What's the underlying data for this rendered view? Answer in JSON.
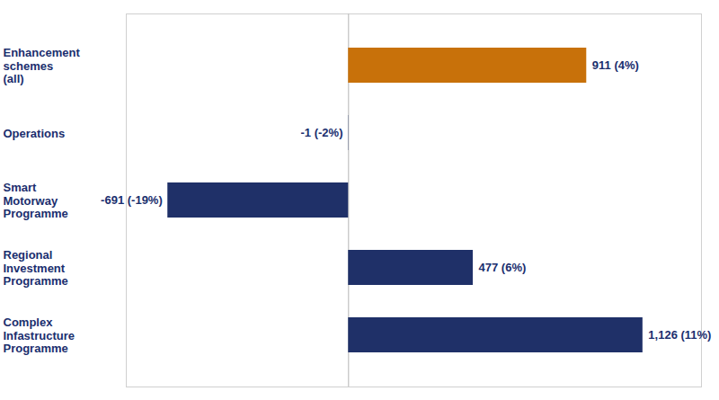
{
  "chart_data": {
    "type": "bar",
    "orientation": "horizontal",
    "categories": [
      "Enhancement\nschemes\n(all)",
      "Operations",
      "Smart\nMotorway\nProgramme",
      "Regional\nInvestment\nProgramme",
      "Complex\nInfastructure\nProgramme"
    ],
    "values": [
      911,
      -1,
      -691,
      477,
      1126
    ],
    "value_labels": [
      "911 (4%)",
      "-1 (-2%)",
      "-691 (-19%)",
      "477 (6%)",
      "1,126 (11%)"
    ],
    "colors": [
      "#c8710a",
      "#1f3068",
      "#1f3068",
      "#1f3068",
      "#1f3068"
    ],
    "xlim": [
      -850,
      1350
    ],
    "xticks": [],
    "data_labels": true,
    "tick_labels": "y",
    "grid": false
  }
}
